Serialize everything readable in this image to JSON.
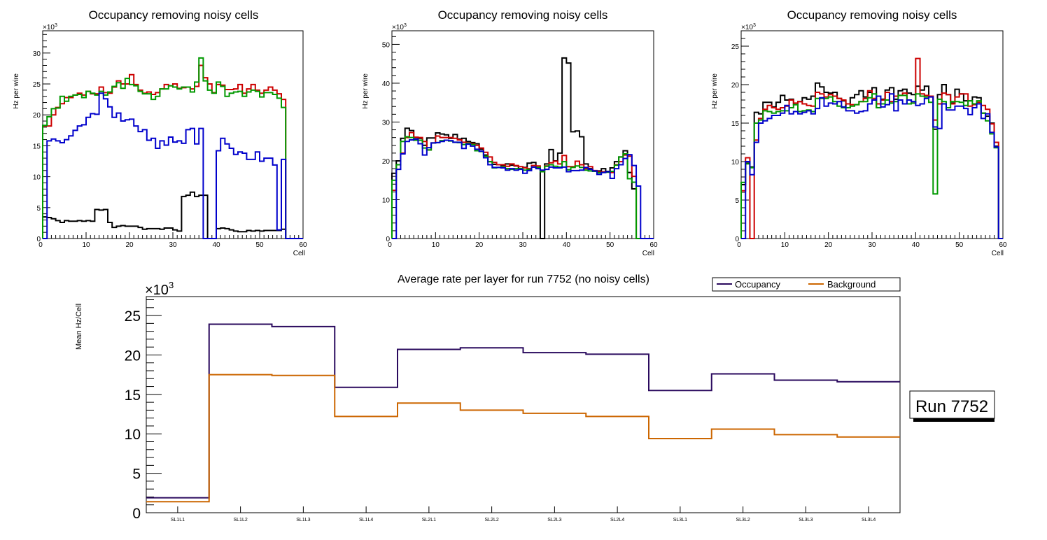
{
  "chart_data": [
    {
      "type": "histogram",
      "title": "Occupancy removing noisy cells",
      "xlabel": "Cell",
      "ylabel": "Hz per wire",
      "y_multiplier": "×10^3",
      "xlim": [
        0,
        60
      ],
      "ylim": [
        0,
        33.6
      ],
      "x_ticks": [
        "0",
        "10",
        "20",
        "30",
        "40",
        "50",
        "60"
      ],
      "y_ticks": [
        "0",
        "5",
        "10",
        "15",
        "20",
        "25",
        "30"
      ],
      "bin_width": 1,
      "series": [
        {
          "name": "black",
          "color": "#000000",
          "values": [
            3.5,
            3.4,
            3.2,
            2.9,
            2.6,
            2.9,
            2.8,
            2.8,
            2.9,
            2.8,
            2.9,
            2.8,
            4.7,
            4.6,
            4.7,
            2.6,
            1.8,
            2.0,
            2.1,
            2.0,
            2.0,
            2.0,
            1.8,
            1.5,
            1.6,
            1.6,
            1.6,
            1.5,
            1.7,
            1.7,
            1.4,
            1.2,
            6.8,
            7.0,
            7.5,
            6.8,
            7.0,
            7.0,
            0,
            0,
            1.6,
            1.7,
            1.6,
            1.4,
            1.2,
            1.1,
            1.1,
            1.3,
            1.2,
            1.3,
            1.2,
            1.3,
            1.3,
            1.3,
            1.3,
            1.5,
            0,
            0,
            0,
            0
          ]
        },
        {
          "name": "red",
          "color": "#cc0000",
          "values": [
            18.2,
            18.2,
            20.0,
            21.2,
            21.8,
            22.8,
            22.8,
            23.2,
            23.5,
            23.2,
            23.8,
            23.4,
            23.4,
            24.5,
            23.6,
            23.5,
            24.5,
            25.5,
            25.0,
            25.0,
            26.5,
            24.9,
            24.0,
            23.5,
            23.7,
            23.3,
            23.6,
            24.2,
            24.9,
            24.7,
            25.0,
            24.3,
            24.4,
            24.5,
            24.2,
            24.6,
            28.0,
            26.0,
            25.0,
            23.6,
            24.9,
            24.8,
            24.1,
            24.1,
            24.2,
            24.9,
            23.5,
            24.2,
            24.9,
            24.0,
            23.5,
            24.0,
            24.5,
            24.0,
            23.4,
            22.5,
            0,
            0,
            0,
            0
          ]
        },
        {
          "name": "green",
          "color": "#009900",
          "values": [
            18.3,
            19.7,
            21.0,
            21.1,
            23.0,
            22.2,
            23.0,
            23.2,
            23.3,
            22.8,
            23.8,
            23.5,
            23.2,
            23.8,
            23.2,
            23.7,
            24.6,
            25.2,
            24.3,
            25.9,
            24.9,
            24.7,
            23.8,
            23.4,
            23.4,
            22.5,
            23.0,
            24.2,
            24.2,
            24.7,
            24.5,
            24.2,
            24.5,
            24.5,
            23.7,
            25.3,
            29.2,
            25.5,
            24.0,
            23.5,
            25.3,
            24.6,
            23.0,
            23.5,
            23.7,
            23.8,
            23.0,
            23.7,
            24.0,
            23.8,
            22.9,
            23.6,
            23.6,
            23.3,
            22.7,
            21.2,
            0,
            0,
            0,
            0
          ]
        },
        {
          "name": "blue",
          "color": "#0000cc",
          "values": [
            0,
            15.8,
            16.1,
            15.8,
            15.5,
            16.0,
            16.6,
            17.5,
            18.2,
            18.4,
            19.6,
            20.2,
            20.1,
            23.5,
            22.6,
            21.3,
            19.6,
            20.3,
            19.0,
            19.2,
            19.3,
            18.2,
            17.3,
            17.6,
            15.9,
            16.2,
            14.6,
            15.8,
            15.1,
            16.4,
            15.6,
            15.8,
            15.4,
            17.6,
            17.8,
            15.3,
            17.8,
            0,
            0,
            0,
            14.2,
            16.2,
            15.3,
            14.6,
            13.6,
            14.0,
            13.8,
            12.8,
            12.8,
            14.0,
            12.5,
            13.0,
            13.0,
            11.9,
            1.4,
            12.8,
            0,
            0,
            0,
            0
          ]
        }
      ]
    },
    {
      "type": "histogram",
      "title": "Occupancy removing noisy cells",
      "xlabel": "Cell",
      "ylabel": "Hz per wire",
      "y_multiplier": "×10^3",
      "xlim": [
        0,
        60
      ],
      "ylim": [
        0,
        53.5
      ],
      "x_ticks": [
        "0",
        "10",
        "20",
        "30",
        "40",
        "50",
        "60"
      ],
      "y_ticks": [
        "0",
        "10",
        "20",
        "30",
        "40",
        "50"
      ],
      "bin_width": 1,
      "series": [
        {
          "name": "black",
          "color": "#000000",
          "values": [
            16.8,
            20.0,
            25.8,
            28.4,
            27.8,
            26.0,
            25.8,
            24.0,
            25.9,
            25.9,
            27.2,
            26.9,
            26.7,
            25.8,
            26.8,
            25.6,
            25.8,
            25.0,
            24.7,
            24.4,
            23.0,
            21.5,
            19.8,
            19.1,
            19.0,
            18.8,
            19.2,
            18.9,
            18.7,
            18.0,
            18.3,
            19.4,
            19.6,
            18.3,
            0,
            19.2,
            22.9,
            20.0,
            22.0,
            46.5,
            45.2,
            27.5,
            27.7,
            26.2,
            19.2,
            18.0,
            17.3,
            17.4,
            18.0,
            17.3,
            18.2,
            19.8,
            21.0,
            22.6,
            17.0,
            12.8,
            0,
            0,
            0,
            0
          ]
        },
        {
          "name": "red",
          "color": "#cc0000",
          "values": [
            12.4,
            19.0,
            22.0,
            26.0,
            27.3,
            26.1,
            26.0,
            25.0,
            22.8,
            24.6,
            26.4,
            26.0,
            26.0,
            26.0,
            25.8,
            25.4,
            24.8,
            24.6,
            24.4,
            24.0,
            23.3,
            22.2,
            21.0,
            19.6,
            19.0,
            19.0,
            18.6,
            19.2,
            18.8,
            18.5,
            18.2,
            18.0,
            18.8,
            18.7,
            17.5,
            18.7,
            19.5,
            19.9,
            19.2,
            21.4,
            18.5,
            18.5,
            19.9,
            19.0,
            18.0,
            18.5,
            17.5,
            17.2,
            17.2,
            17.1,
            17.0,
            19.0,
            19.8,
            21.5,
            21.2,
            16.0,
            0,
            0,
            0,
            0
          ]
        },
        {
          "name": "green",
          "color": "#009900",
          "values": [
            15.0,
            19.0,
            25.0,
            26.2,
            26.0,
            25.3,
            25.3,
            23.3,
            22.8,
            24.6,
            24.7,
            25.2,
            25.3,
            25.1,
            24.8,
            24.7,
            24.2,
            24.5,
            24.2,
            22.6,
            22.4,
            21.2,
            19.8,
            18.2,
            18.3,
            18.4,
            18.0,
            17.8,
            18.0,
            18.0,
            17.6,
            17.8,
            18.4,
            18.3,
            17.2,
            18.6,
            19.0,
            18.6,
            18.4,
            19.8,
            17.7,
            18.3,
            18.7,
            18.3,
            17.6,
            17.4,
            17.3,
            16.9,
            17.0,
            17.1,
            17.3,
            18.9,
            21.0,
            21.8,
            15.4,
            14.5,
            0,
            0,
            0,
            0
          ]
        },
        {
          "name": "blue",
          "color": "#0000cc",
          "values": [
            0,
            17.8,
            21.8,
            25.0,
            25.4,
            25.6,
            24.4,
            21.5,
            23.4,
            24.6,
            24.7,
            25.0,
            25.3,
            25.2,
            24.8,
            24.8,
            23.2,
            24.3,
            23.8,
            23.0,
            22.5,
            20.8,
            19.0,
            18.3,
            18.3,
            18.2,
            17.6,
            18.0,
            17.6,
            17.8,
            16.8,
            17.5,
            18.4,
            18.0,
            17.6,
            17.8,
            18.4,
            18.2,
            18.2,
            18.4,
            17.2,
            17.5,
            17.5,
            17.6,
            18.3,
            17.8,
            17.4,
            16.5,
            17.0,
            17.2,
            15.5,
            18.0,
            19.0,
            20.6,
            21.6,
            18.8,
            13.5,
            0,
            0,
            0
          ]
        }
      ]
    },
    {
      "type": "histogram",
      "title": "Occupancy removing noisy cells",
      "xlabel": "Cell",
      "ylabel": "Hz per wire",
      "y_multiplier": "×10^3",
      "xlim": [
        0,
        60
      ],
      "ylim": [
        0,
        27
      ],
      "x_ticks": [
        "0",
        "10",
        "20",
        "30",
        "40",
        "50",
        "60"
      ],
      "y_ticks": [
        "0",
        "5",
        "10",
        "15",
        "20",
        "25"
      ],
      "bin_width": 1,
      "series": [
        {
          "name": "black",
          "color": "#000000",
          "values": [
            7.0,
            9.8,
            9.3,
            16.4,
            16.2,
            17.7,
            17.7,
            17.1,
            17.7,
            18.6,
            18.0,
            18.1,
            17.4,
            17.8,
            18.3,
            18.1,
            18.5,
            20.2,
            19.7,
            19.0,
            18.9,
            19.0,
            18.2,
            17.9,
            17.0,
            18.3,
            18.7,
            19.2,
            18.4,
            19.0,
            19.6,
            17.0,
            18.1,
            19.3,
            19.6,
            18.1,
            19.2,
            19.4,
            18.9,
            18.7,
            19.8,
            19.3,
            19.8,
            18.5,
            14.2,
            18.7,
            20.0,
            18.7,
            17.6,
            19.4,
            18.8,
            17.9,
            17.9,
            18.4,
            18.3,
            16.3,
            15.9,
            15.0,
            12.0,
            0
          ]
        },
        {
          "name": "red",
          "color": "#cc0000",
          "values": [
            6.2,
            10.5,
            0,
            12.8,
            15.6,
            16.8,
            17.3,
            17.0,
            16.8,
            17.0,
            17.2,
            18.0,
            17.6,
            17.8,
            17.5,
            17.3,
            17.2,
            19.0,
            18.8,
            18.4,
            18.7,
            18.5,
            18.2,
            18.0,
            17.5,
            17.4,
            17.4,
            17.8,
            18.2,
            19.2,
            18.2,
            17.5,
            18.0,
            19.0,
            17.8,
            18.5,
            18.6,
            18.9,
            18.0,
            17.6,
            23.4,
            18.8,
            18.6,
            18.5,
            15.4,
            17.5,
            18.9,
            18.7,
            17.5,
            18.4,
            18.8,
            18.8,
            17.2,
            17.4,
            17.7,
            17.3,
            16.8,
            14.9,
            12.5,
            0
          ]
        },
        {
          "name": "green",
          "color": "#009900",
          "values": [
            7.3,
            9.7,
            9.2,
            15.0,
            15.4,
            16.6,
            16.5,
            16.3,
            16.5,
            16.6,
            16.6,
            17.0,
            17.4,
            16.5,
            16.6,
            16.7,
            16.5,
            18.2,
            18.2,
            18.2,
            18.4,
            17.8,
            17.2,
            17.0,
            17.0,
            17.2,
            17.4,
            17.8,
            17.8,
            18.3,
            18.8,
            17.0,
            17.5,
            18.0,
            17.6,
            17.8,
            18.6,
            18.6,
            17.5,
            17.6,
            18.8,
            18.5,
            18.4,
            17.7,
            5.8,
            18.1,
            17.8,
            17.0,
            17.8,
            17.8,
            17.7,
            17.3,
            17.9,
            17.5,
            17.9,
            16.3,
            15.3,
            13.6,
            11.8,
            0
          ]
        },
        {
          "name": "blue",
          "color": "#0000cc",
          "values": [
            0,
            10.0,
            8.3,
            12.5,
            15.0,
            15.3,
            15.6,
            16.0,
            16.0,
            16.3,
            17.3,
            16.2,
            16.5,
            16.2,
            16.4,
            16.6,
            16.2,
            16.9,
            18.3,
            17.2,
            17.6,
            17.5,
            17.8,
            17.1,
            16.6,
            16.6,
            16.3,
            16.5,
            16.6,
            17.5,
            18.0,
            18.5,
            17.1,
            17.4,
            18.8,
            16.6,
            18.0,
            17.5,
            18.0,
            17.8,
            17.3,
            17.5,
            18.2,
            18.4,
            14.5,
            14.3,
            17.5,
            16.7,
            16.7,
            17.2,
            17.2,
            16.9,
            16.1,
            17.0,
            17.5,
            15.6,
            16.2,
            13.8,
            11.9,
            0
          ]
        }
      ]
    },
    {
      "type": "histogram",
      "title": "Average rate per layer for run 7752 (no noisy cells)",
      "xlabel": "",
      "ylabel": "Mean Hz/Cell",
      "y_multiplier": "×10^3",
      "ylim": [
        0,
        27.4
      ],
      "categories": [
        "SL1L1",
        "SL1L2",
        "SL1L3",
        "SL1L4",
        "SL2L1",
        "SL2L2",
        "SL2L3",
        "SL2L4",
        "SL3L1",
        "SL3L2",
        "SL3L3",
        "SL3L4"
      ],
      "y_ticks": [
        "0",
        "5",
        "10",
        "15",
        "20",
        "25"
      ],
      "legend_position": "top-right",
      "series": [
        {
          "name": "Occupancy",
          "color": "#2a0a5e",
          "values": [
            1.9,
            23.9,
            23.6,
            15.9,
            20.7,
            20.9,
            20.3,
            20.1,
            15.5,
            17.6,
            16.8,
            16.6
          ]
        },
        {
          "name": "Background",
          "color": "#cc6600",
          "values": [
            1.4,
            17.5,
            17.4,
            12.2,
            13.9,
            13.0,
            12.6,
            12.2,
            9.4,
            10.6,
            9.9,
            9.6
          ]
        }
      ],
      "annotation": "Run 7752"
    }
  ]
}
